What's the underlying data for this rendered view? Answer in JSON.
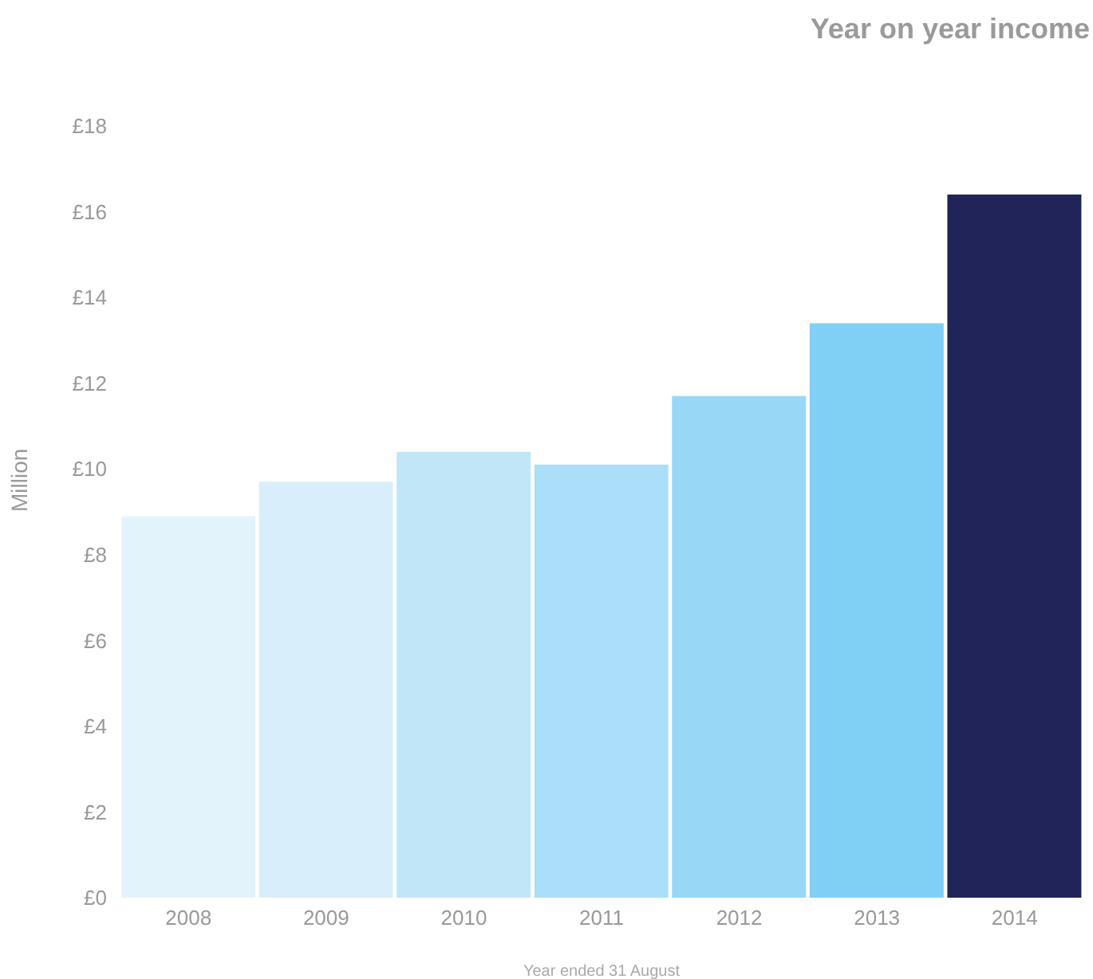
{
  "chart_data": {
    "type": "bar",
    "title": "Year on year income",
    "xlabel": "Year ended 31 August",
    "ylabel": "Million",
    "categories": [
      "2008",
      "2009",
      "2010",
      "2011",
      "2012",
      "2013",
      "2014"
    ],
    "values": [
      8.9,
      9.7,
      10.4,
      10.1,
      11.7,
      13.4,
      16.4
    ],
    "colors": [
      "#e3f3fc",
      "#d9eefb",
      "#c1e6f8",
      "#abdef8",
      "#98d7f6",
      "#80d0f5",
      "#212459"
    ],
    "ylim": [
      0,
      18
    ],
    "yticks": [
      {
        "value": 0,
        "label": "£0"
      },
      {
        "value": 2,
        "label": "£2"
      },
      {
        "value": 4,
        "label": "£4"
      },
      {
        "value": 6,
        "label": "£6"
      },
      {
        "value": 8,
        "label": "£8"
      },
      {
        "value": 10,
        "label": "£10"
      },
      {
        "value": 12,
        "label": "£12"
      },
      {
        "value": 14,
        "label": "£14"
      },
      {
        "value": 16,
        "label": "£16"
      },
      {
        "value": 18,
        "label": "£18"
      }
    ]
  }
}
